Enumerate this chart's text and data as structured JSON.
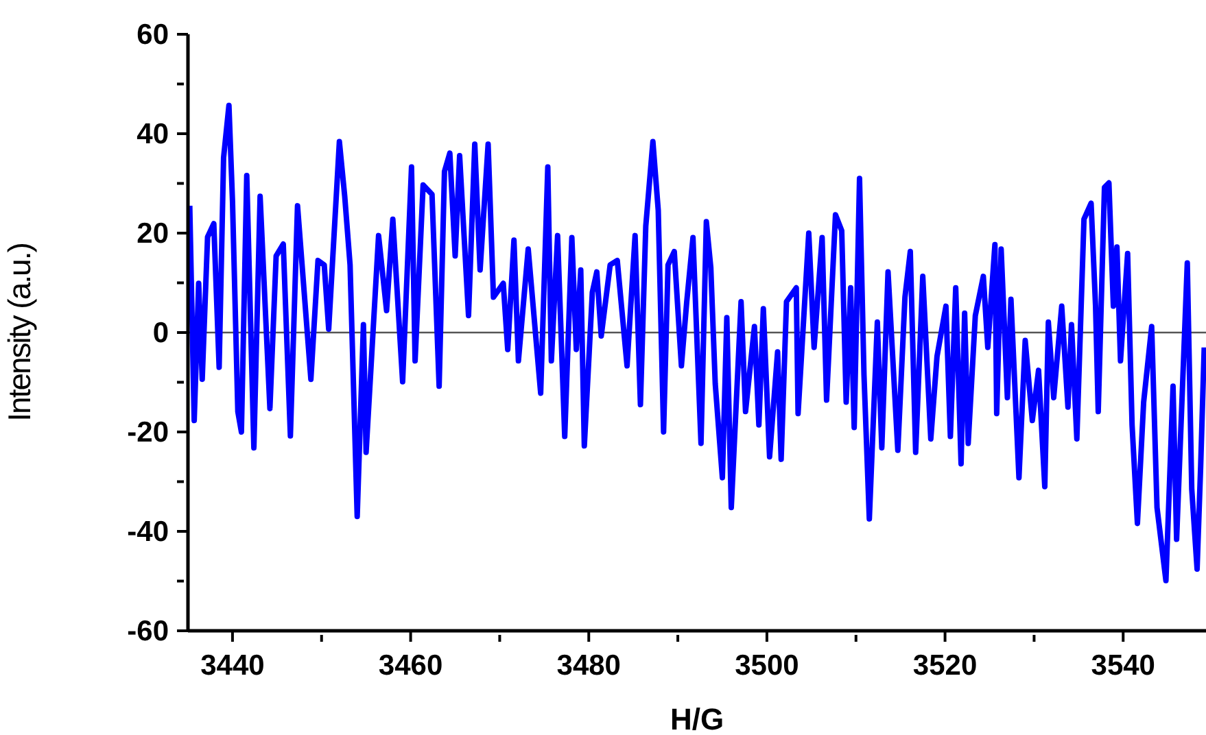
{
  "chart_data": {
    "type": "line",
    "xlabel": "H/G",
    "ylabel": "Intensity (a.u.)",
    "xlim": [
      3435,
      3549.3
    ],
    "ylim": [
      -60,
      60
    ],
    "xticks": [
      3440,
      {
        "value": 3450,
        "label": null
      },
      3460,
      {
        "value": 3470,
        "label": null
      },
      3480,
      {
        "value": 3490,
        "label": null
      },
      3500,
      {
        "value": 3510,
        "label": null
      },
      3520,
      {
        "value": 3530,
        "label": null
      },
      3540
    ],
    "yticks": [
      -60,
      {
        "value": -50,
        "label": null
      },
      -40,
      {
        "value": -30,
        "label": null
      },
      -20,
      {
        "value": -10,
        "label": null
      },
      0,
      {
        "value": 10,
        "label": null
      },
      20,
      {
        "value": 30,
        "label": null
      },
      40,
      {
        "value": 50,
        "label": null
      },
      60
    ],
    "grid": false,
    "legend": false,
    "marker": "none",
    "line_style": "solid",
    "ref_lines": [
      {
        "axis": "y",
        "value": 0,
        "color": "#555555"
      }
    ],
    "series": [
      {
        "color": "#0000ff",
        "x": [
          3435.2,
          3435.7,
          3436.2,
          3436.6,
          3437.2,
          3437.9,
          3438.5,
          3439.0,
          3439.6,
          3440.0,
          3440.6,
          3441.0,
          3441.6,
          3442.4,
          3443.1,
          3444.2,
          3444.9,
          3445.7,
          3446.5,
          3447.3,
          3448.8,
          3449.6,
          3450.3,
          3450.8,
          3452.0,
          3452.6,
          3453.2,
          3454.0,
          3454.7,
          3455.0,
          3456.4,
          3457.3,
          3458.0,
          3459.1,
          3460.1,
          3460.5,
          3461.4,
          3462.4,
          3463.2,
          3463.8,
          3464.4,
          3465.0,
          3465.5,
          3466.5,
          3467.2,
          3467.8,
          3468.7,
          3469.3,
          3470.4,
          3470.9,
          3471.6,
          3472.1,
          3473.2,
          3474.6,
          3475.4,
          3475.8,
          3476.5,
          3477.3,
          3478.1,
          3478.6,
          3479.1,
          3479.5,
          3480.4,
          3480.9,
          3481.4,
          3482.4,
          3483.2,
          3484.3,
          3485.2,
          3485.8,
          3486.4,
          3487.2,
          3487.8,
          3488.4,
          3488.9,
          3489.6,
          3490.4,
          3491.0,
          3491.7,
          3492.6,
          3493.2,
          3493.7,
          3494.2,
          3495.0,
          3495.5,
          3496.0,
          3497.1,
          3497.6,
          3498.6,
          3499.1,
          3499.6,
          3500.3,
          3501.2,
          3501.6,
          3502.2,
          3503.3,
          3503.5,
          3504.7,
          3505.3,
          3506.2,
          3506.7,
          3507.7,
          3508.4,
          3508.9,
          3509.4,
          3509.8,
          3510.4,
          3510.9,
          3511.5,
          3512.4,
          3512.9,
          3513.6,
          3514.7,
          3515.5,
          3516.1,
          3516.7,
          3517.5,
          3518.4,
          3519.1,
          3520.1,
          3520.6,
          3521.2,
          3521.8,
          3522.2,
          3522.6,
          3523.4,
          3524.3,
          3524.8,
          3525.6,
          3525.8,
          3526.3,
          3527.0,
          3527.4,
          3528.3,
          3529.0,
          3529.8,
          3530.5,
          3531.2,
          3531.6,
          3532.2,
          3533.1,
          3533.8,
          3534.2,
          3534.8,
          3535.6,
          3536.4,
          3536.9,
          3537.2,
          3537.9,
          3538.4,
          3538.9,
          3539.3,
          3539.7,
          3540.5,
          3541.0,
          3541.6,
          3542.3,
          3543.2,
          3543.8,
          3544.8,
          3545.6,
          3546.0,
          3547.2,
          3547.7,
          3548.3,
          3548.7,
          3549.1
        ],
        "values": [
          25.5,
          -17.7,
          9.9,
          -9.4,
          19.2,
          21.9,
          -7.0,
          35.2,
          45.7,
          26.4,
          -15.9,
          -20,
          31.6,
          -23.2,
          27.4,
          -15.3,
          15.4,
          17.8,
          -20.8,
          25.5,
          -9.4,
          14.5,
          13.6,
          0.7,
          38.4,
          27.4,
          13.6,
          -37,
          1.6,
          -24.1,
          19.5,
          4.4,
          22.8,
          -9.9,
          33.3,
          -5.7,
          29.7,
          27.8,
          -10.8,
          32.4,
          36.1,
          15.4,
          35.6,
          3.4,
          37.9,
          12.6,
          37.9,
          7.1,
          9.9,
          -3.4,
          18.6,
          -5.7,
          16.8,
          -12.2,
          33.3,
          -5.7,
          19.5,
          -20.9,
          19.1,
          -3.4,
          12.6,
          -22.8,
          8.1,
          12.2,
          -0.7,
          13.6,
          14.5,
          -6.7,
          19.5,
          -14.5,
          21.4,
          38.4,
          24.6,
          -20,
          13.6,
          16.3,
          -6.7,
          6.2,
          19.1,
          -22.3,
          22.3,
          13.1,
          -10.3,
          -29.2,
          3.0,
          -35.2,
          6.2,
          -15.9,
          1.2,
          -18.6,
          4.8,
          -25,
          -3.9,
          -25.5,
          6.2,
          9.0,
          -16.3,
          20,
          -3.0,
          19.1,
          -13.6,
          23.7,
          20.5,
          -14,
          9.0,
          -19.1,
          31.0,
          -8.5,
          -37.5,
          2.1,
          -23.2,
          12.2,
          -23.7,
          7.1,
          16.3,
          -24.1,
          11.3,
          -21.4,
          -4.8,
          5.3,
          -20.9,
          9.0,
          -26.4,
          3.9,
          -22.3,
          3.4,
          11.3,
          -3.0,
          17.7,
          -16.3,
          16.8,
          -13.1,
          6.7,
          -29.2,
          -1.6,
          -17.7,
          -7.6,
          -31,
          2.1,
          -13.1,
          5.3,
          -15,
          1.6,
          -21.4,
          22.8,
          26,
          5.3,
          -15.9,
          29.2,
          30.1,
          5.3,
          17.2,
          -5.7,
          15.9,
          -18.6,
          -38.4,
          -14,
          1.2,
          -35.2,
          -49.9,
          -10.8,
          -41.6,
          14,
          -31.5,
          -47.6,
          -26.9,
          -3.0
        ]
      }
    ]
  }
}
